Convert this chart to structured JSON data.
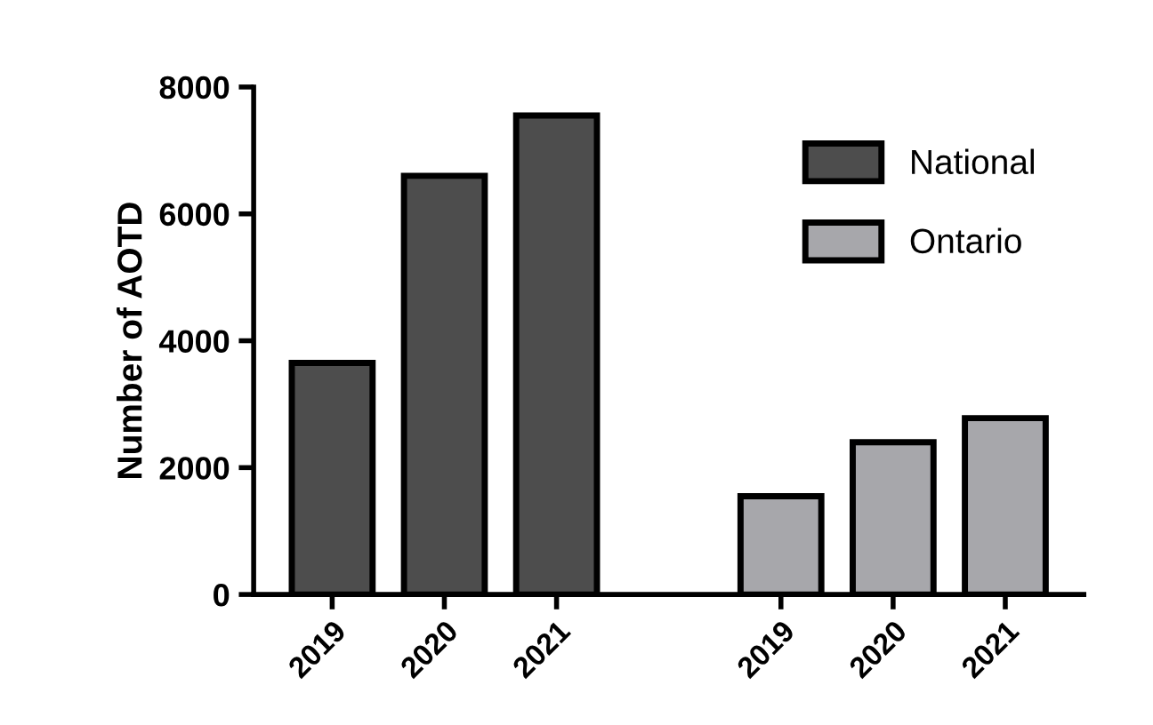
{
  "chart_data": {
    "type": "bar",
    "ylabel": "Number of AOTD",
    "categories": [
      "2019",
      "2020",
      "2021",
      null,
      "2019",
      "2020",
      "2021"
    ],
    "series": [
      {
        "name": "National",
        "color": "#4d4d4d",
        "values": [
          3650,
          6600,
          7550,
          null,
          null,
          null,
          null
        ]
      },
      {
        "name": "Ontario",
        "color": "#a7a7ab",
        "values": [
          null,
          null,
          null,
          null,
          1550,
          2400,
          2780
        ]
      }
    ],
    "ylim": [
      0,
      8000
    ],
    "yticks": [
      0,
      2000,
      4000,
      6000,
      8000
    ],
    "grid": false,
    "legend": "top right"
  }
}
